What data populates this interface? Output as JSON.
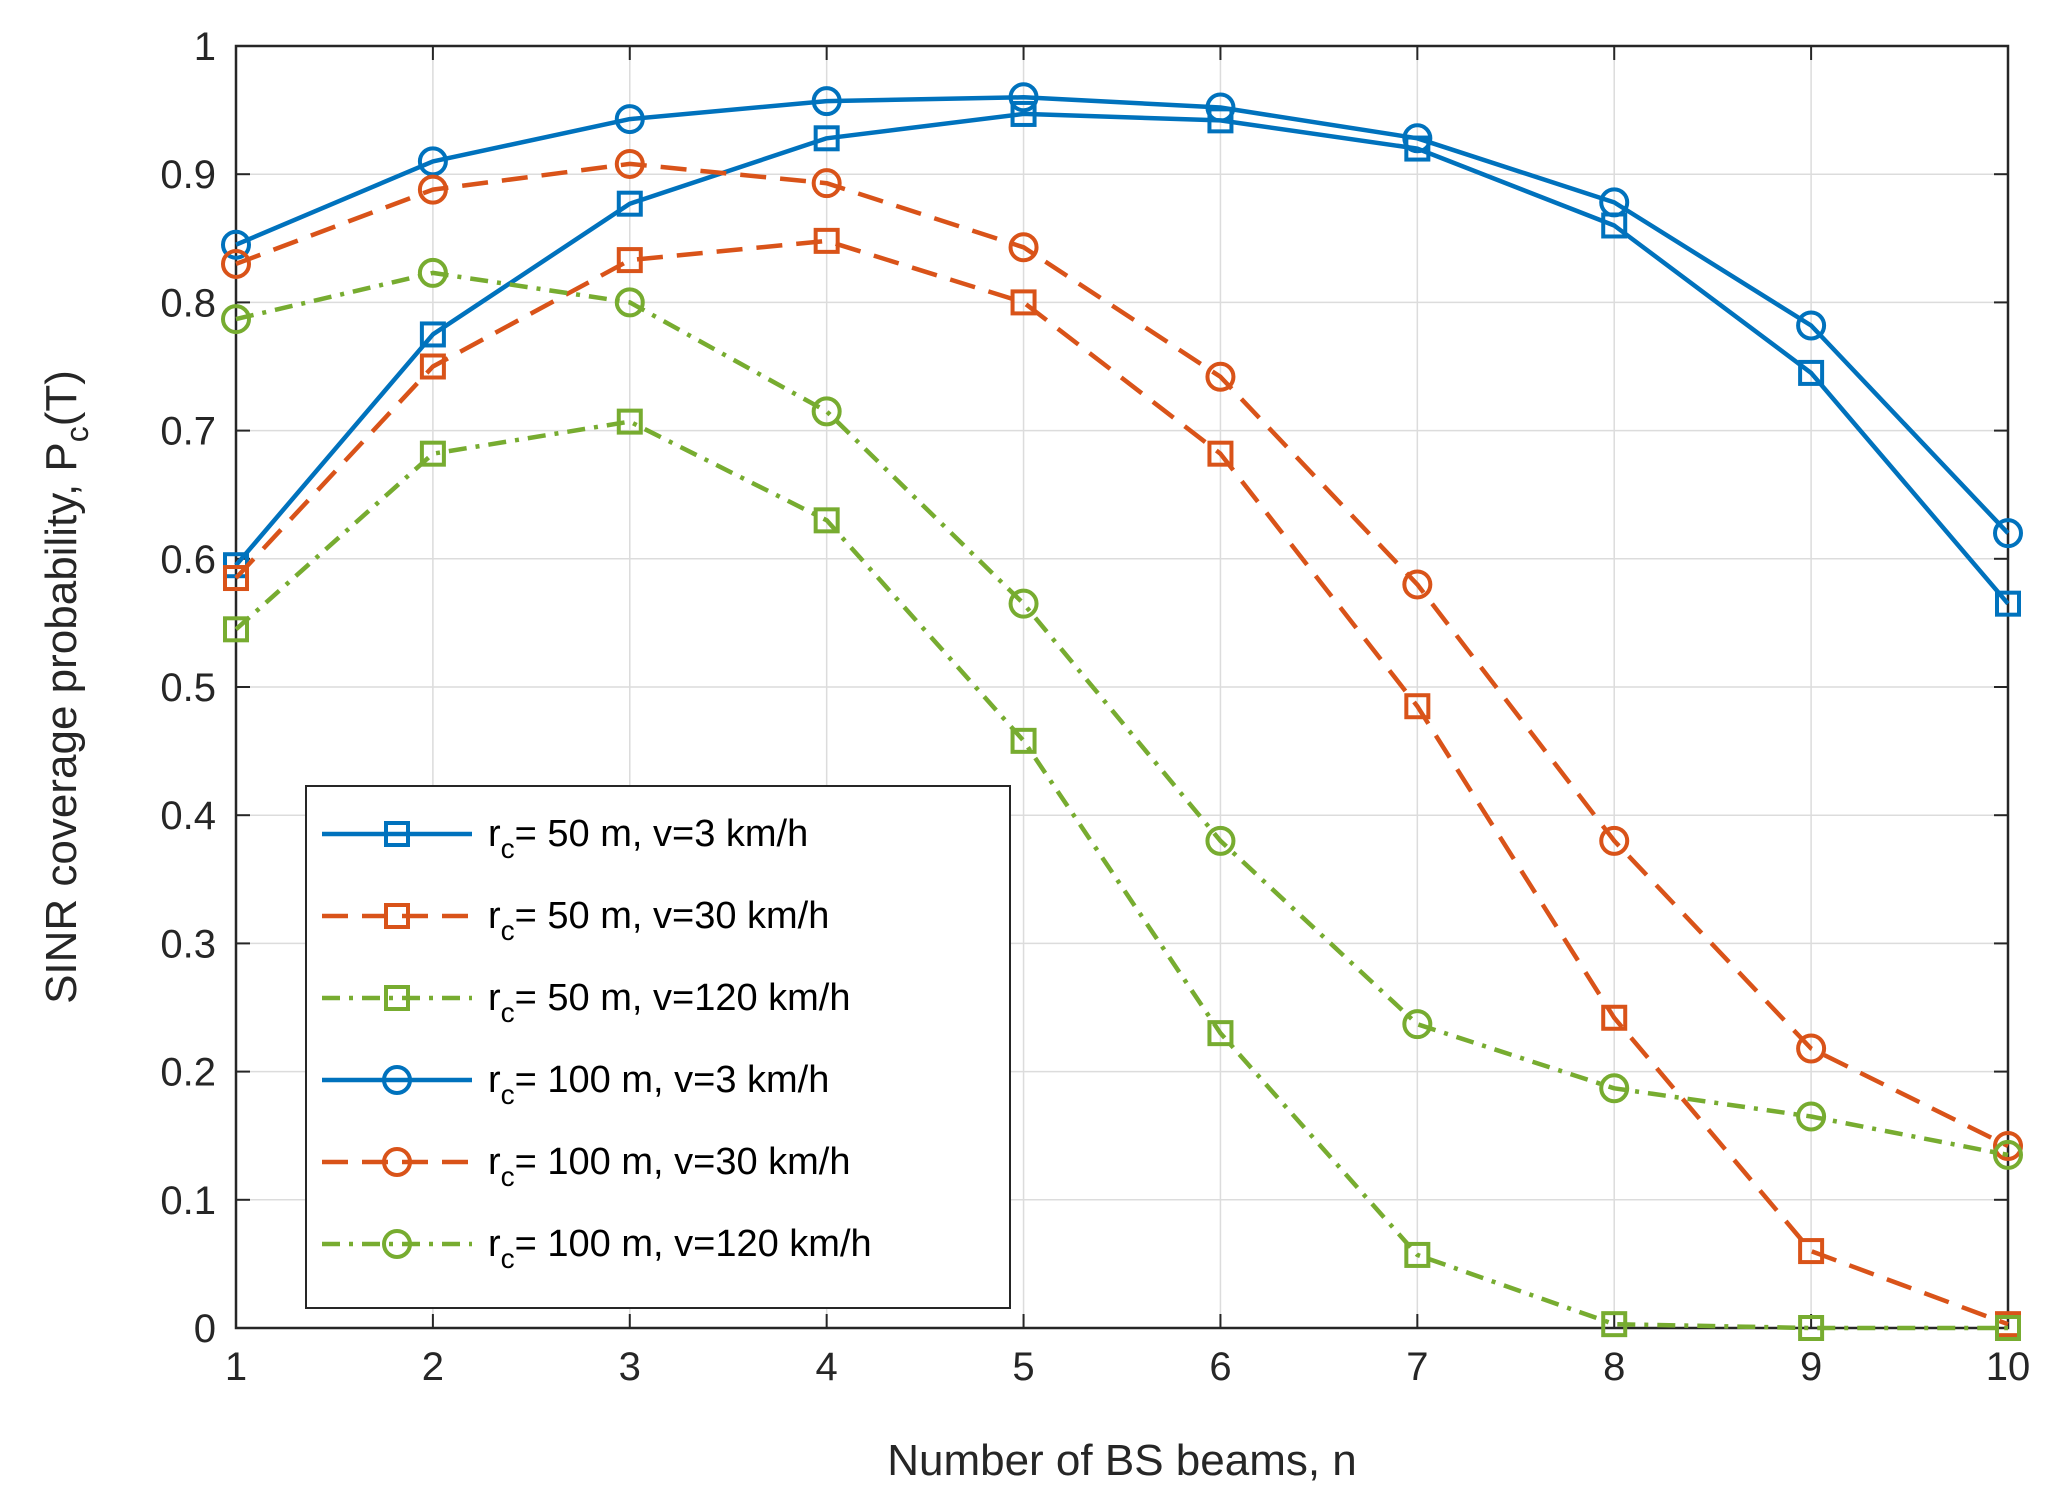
{
  "chart_data": {
    "type": "line",
    "xlabel": "Number of BS beams, n",
    "ylabel": {
      "main": "SINR coverage probability, P",
      "sub": "c",
      "suffix": "(T)"
    },
    "xlim": [
      1,
      10
    ],
    "ylim": [
      0,
      1
    ],
    "x": [
      1,
      2,
      3,
      4,
      5,
      6,
      7,
      8,
      9,
      10
    ],
    "x_ticks": [
      "1",
      "2",
      "3",
      "4",
      "5",
      "6",
      "7",
      "8",
      "9",
      "10"
    ],
    "y_ticks": [
      "0",
      "0.1",
      "0.2",
      "0.3",
      "0.4",
      "0.5",
      "0.6",
      "0.7",
      "0.8",
      "0.9",
      "1"
    ],
    "grid": true,
    "legend_position": "bottom-left",
    "series": [
      {
        "name_prefix": "r",
        "name_sub": "c",
        "name_rest": "= 50 m, v=3 km/h",
        "color": "#0072BD",
        "line_style": "solid",
        "marker": "square",
        "values": [
          0.595,
          0.775,
          0.877,
          0.928,
          0.947,
          0.942,
          0.92,
          0.86,
          0.745,
          0.565
        ]
      },
      {
        "name_prefix": "r",
        "name_sub": "c",
        "name_rest": "= 50 m, v=30 km/h",
        "color": "#D95319",
        "line_style": "dashed",
        "marker": "square",
        "values": [
          0.585,
          0.75,
          0.833,
          0.848,
          0.8,
          0.682,
          0.485,
          0.242,
          0.06,
          0.003
        ]
      },
      {
        "name_prefix": "r",
        "name_sub": "c",
        "name_rest": "= 50 m, v=120 km/h",
        "color": "#77AC30",
        "line_style": "dashdot",
        "marker": "square",
        "values": [
          0.545,
          0.682,
          0.707,
          0.63,
          0.458,
          0.23,
          0.057,
          0.003,
          0.0,
          0.0
        ]
      },
      {
        "name_prefix": "r",
        "name_sub": "c",
        "name_rest": "= 100 m, v=3 km/h",
        "color": "#0072BD",
        "line_style": "solid",
        "marker": "circle",
        "values": [
          0.845,
          0.91,
          0.943,
          0.957,
          0.96,
          0.952,
          0.928,
          0.878,
          0.782,
          0.62
        ]
      },
      {
        "name_prefix": "r",
        "name_sub": "c",
        "name_rest": "= 100 m, v=30 km/h",
        "color": "#D95319",
        "line_style": "dashed",
        "marker": "circle",
        "values": [
          0.83,
          0.888,
          0.908,
          0.893,
          0.843,
          0.742,
          0.58,
          0.38,
          0.218,
          0.142
        ]
      },
      {
        "name_prefix": "r",
        "name_sub": "c",
        "name_rest": "= 100 m, v=120 km/h",
        "color": "#77AC30",
        "line_style": "dashdot",
        "marker": "circle",
        "values": [
          0.787,
          0.823,
          0.8,
          0.715,
          0.565,
          0.38,
          0.237,
          0.187,
          0.165,
          0.135
        ]
      }
    ]
  }
}
